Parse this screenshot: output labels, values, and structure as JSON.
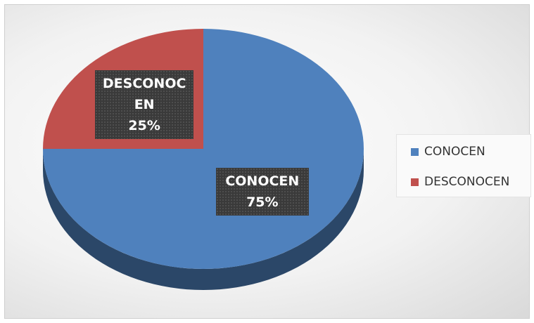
{
  "chart_data": {
    "type": "pie",
    "categories": [
      "CONOCEN",
      "DESCONOCEN"
    ],
    "values": [
      75,
      25
    ],
    "value_labels": [
      "75%",
      "25%"
    ],
    "colors": [
      "#4f81bd",
      "#c0504d"
    ],
    "legend": "right"
  }
}
